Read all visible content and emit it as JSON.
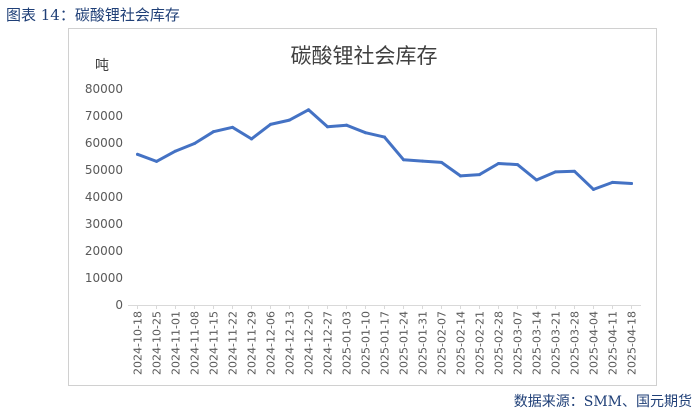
{
  "caption": "图表 14：碳酸锂社会库存",
  "source": "数据来源：SMM、国元期货",
  "chart_data": {
    "type": "line",
    "title": "碳酸锂社会库存",
    "ylabel": "吨",
    "xlabel": "",
    "ylim": [
      0,
      80000
    ],
    "yticks": [
      0,
      10000,
      20000,
      30000,
      40000,
      50000,
      60000,
      70000,
      80000
    ],
    "grid": false,
    "legend": "none",
    "line_color": "#4472C4",
    "categories": [
      "2024-10-18",
      "2024-10-25",
      "2024-11-01",
      "2024-11-08",
      "2024-11-15",
      "2024-11-22",
      "2024-11-29",
      "2024-12-06",
      "2024-12-13",
      "2024-12-20",
      "2024-12-27",
      "2025-01-03",
      "2025-01-10",
      "2025-01-17",
      "2025-01-24",
      "2025-01-31",
      "2025-02-07",
      "2025-02-14",
      "2025-02-21",
      "2025-02-28",
      "2025-03-07",
      "2025-03-14",
      "2025-03-21",
      "2025-03-28",
      "2025-04-04",
      "2025-04-11",
      "2025-04-18"
    ],
    "series": [
      {
        "values": [
          55800,
          53200,
          57000,
          59800,
          64200,
          65800,
          61500,
          66900,
          68500,
          72300,
          66000,
          66600,
          63800,
          62200,
          53800,
          53300,
          52800,
          47800,
          48300,
          52400,
          52000,
          46300,
          49300,
          49500,
          42800,
          45400,
          45000
        ]
      }
    ]
  }
}
